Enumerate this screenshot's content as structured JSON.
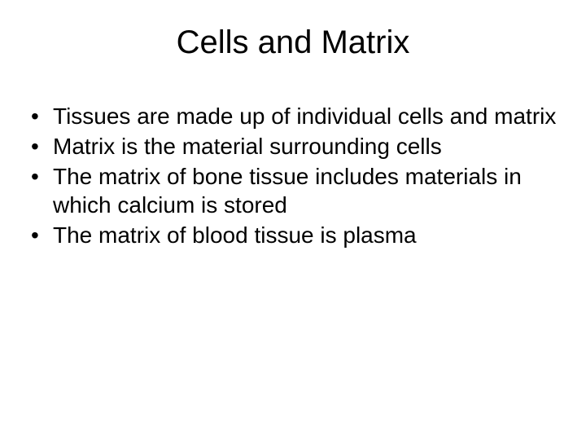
{
  "slide": {
    "title": "Cells and Matrix",
    "bullets": [
      "Tissues are made up of individual cells and matrix",
      "Matrix is the material surrounding cells",
      "The matrix of bone tissue includes materials in which calcium is stored",
      "The matrix of blood tissue is plasma"
    ],
    "background_color": "#ffffff",
    "text_color": "#000000",
    "title_fontsize": 40,
    "bullet_fontsize": 28
  }
}
